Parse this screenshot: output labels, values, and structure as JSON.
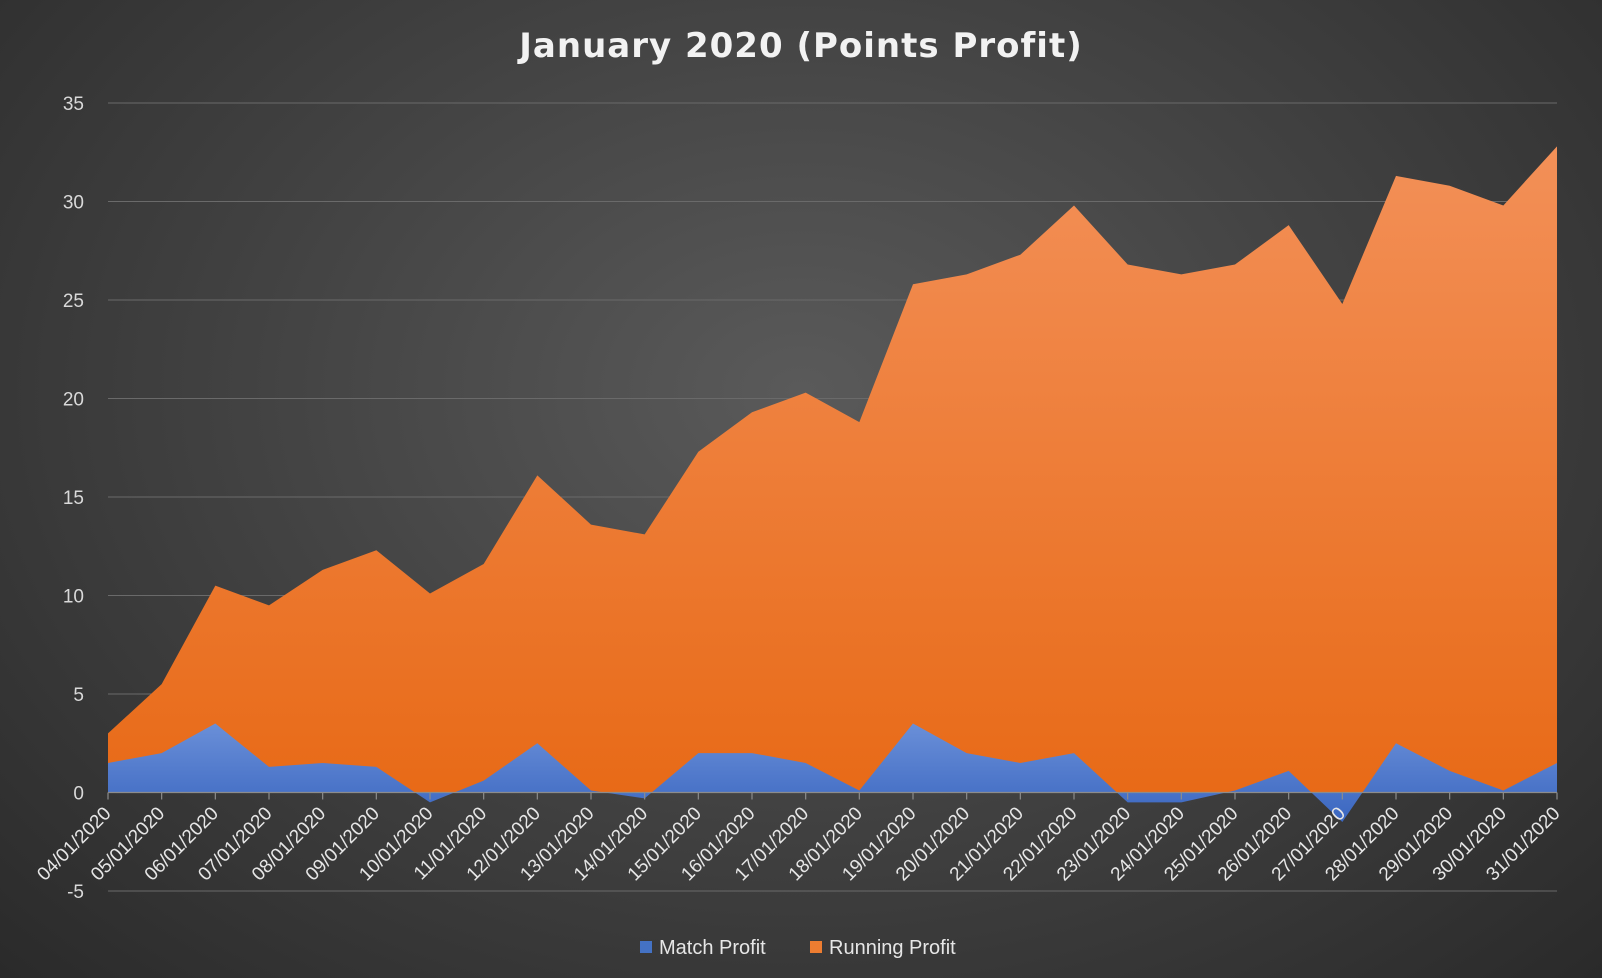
{
  "chart_data": {
    "type": "area",
    "title": "January 2020 (Points Profit)",
    "xlabel": "",
    "ylabel": "",
    "ylim": [
      -5,
      35
    ],
    "yticks": [
      -5,
      0,
      5,
      10,
      15,
      20,
      25,
      30,
      35
    ],
    "grid": true,
    "legend_position": "bottom",
    "categories": [
      "04/01/2020",
      "05/01/2020",
      "06/01/2020",
      "07/01/2020",
      "08/01/2020",
      "09/01/2020",
      "10/01/2020",
      "11/01/2020",
      "12/01/2020",
      "13/01/2020",
      "14/01/2020",
      "15/01/2020",
      "16/01/2020",
      "17/01/2020",
      "18/01/2020",
      "19/01/2020",
      "20/01/2020",
      "21/01/2020",
      "22/01/2020",
      "23/01/2020",
      "24/01/2020",
      "25/01/2020",
      "26/01/2020",
      "27/01/2020",
      "28/01/2020",
      "29/01/2020",
      "30/01/2020",
      "31/01/2020"
    ],
    "series": [
      {
        "name": "Running Profit",
        "color": "#ed7d31",
        "values": [
          3,
          5.5,
          10.5,
          9.5,
          11.3,
          12.3,
          10.1,
          11.6,
          16.1,
          13.6,
          13.1,
          17.3,
          19.3,
          20.3,
          18.8,
          25.8,
          26.3,
          27.3,
          29.8,
          26.8,
          26.3,
          26.8,
          28.8,
          24.8,
          31.3,
          30.8,
          29.8,
          32.8
        ]
      },
      {
        "name": "Match Profit",
        "color": "#4472c4",
        "values": [
          1.5,
          2,
          3.5,
          1.3,
          1.5,
          1.3,
          -0.5,
          0.6,
          2.5,
          0.1,
          -0.3,
          2,
          2,
          1.5,
          0.1,
          3.5,
          2,
          1.5,
          2,
          -0.5,
          -0.5,
          0.1,
          1.1,
          -1.5,
          2.5,
          1.1,
          0.1,
          1.5
        ]
      }
    ],
    "legend": [
      {
        "name": "Match Profit",
        "color": "#4472c4"
      },
      {
        "name": "Running Profit",
        "color": "#ed7d31"
      }
    ]
  }
}
